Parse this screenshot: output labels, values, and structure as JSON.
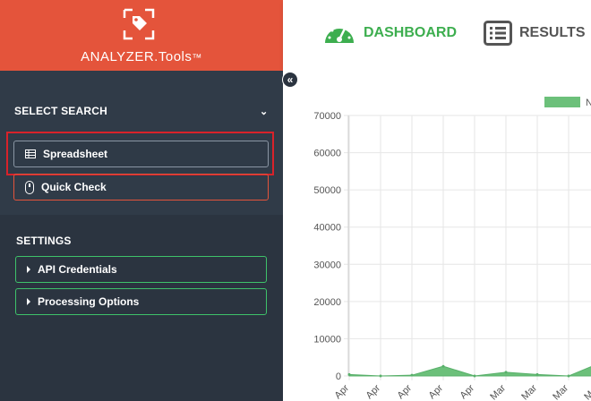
{
  "brand": {
    "name": "ANALYZER.Tools",
    "trademark": "™",
    "accent": "#e4543b",
    "logo_icon": "tag-in-frame-icon"
  },
  "sidebar": {
    "collapse_icon": "double-chevron-left-icon",
    "search_title": "SELECT SEARCH",
    "search_items": [
      {
        "label": "Spreadsheet",
        "icon": "spreadsheet-icon",
        "border": "#8a96a4"
      },
      {
        "label": "Quick Check",
        "icon": "mouse-icon",
        "border": "#e4543b"
      }
    ],
    "settings_title": "SETTINGS",
    "settings_items": [
      {
        "label": "API Credentials",
        "icon": "caret-right-icon",
        "border": "#3ec26a"
      },
      {
        "label": "Processing Options",
        "icon": "caret-right-icon",
        "border": "#3ec26a"
      }
    ],
    "highlight_color": "#d8222a"
  },
  "nav": {
    "tabs": [
      {
        "label": "DASHBOARD",
        "icon": "speedometer-icon",
        "active": true,
        "color": "#3dae4f"
      },
      {
        "label": "RESULTS",
        "icon": "list-icon",
        "active": false,
        "color": "#555555"
      }
    ]
  },
  "chart_data": {
    "type": "area",
    "legend_color": "#6cc07a",
    "legend_text": "N",
    "ylim": [
      0,
      70000
    ],
    "yticks": [
      0,
      10000,
      20000,
      30000,
      40000,
      50000,
      60000,
      70000
    ],
    "x": [
      "Apr",
      "Apr",
      "Apr",
      "Apr",
      "Apr",
      "Mar",
      "Mar",
      "Mar",
      "Mar"
    ],
    "values": [
      400,
      0,
      200,
      2600,
      0,
      1000,
      400,
      0,
      3500
    ],
    "grid": true,
    "fill": "#6cc07a"
  }
}
